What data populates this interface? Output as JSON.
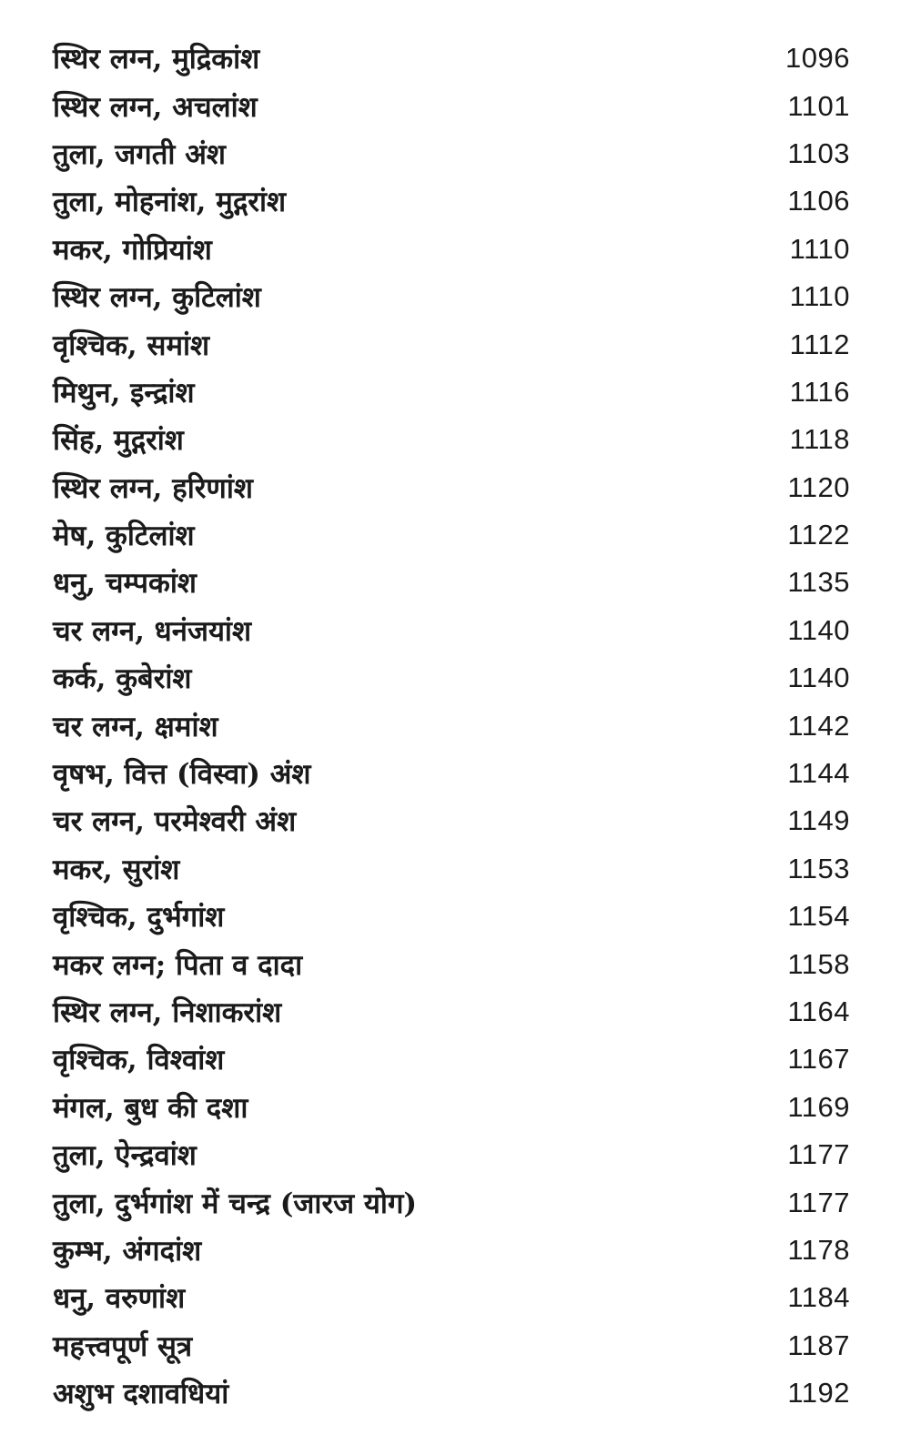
{
  "toc": {
    "entries": [
      {
        "title": "स्थिर लग्न, मुद्रिकांश",
        "page": "1096"
      },
      {
        "title": "स्थिर लग्न, अचलांश",
        "page": "1101"
      },
      {
        "title": "तुला, जगती अंश",
        "page": "1103"
      },
      {
        "title": "तुला, मोहनांश, मुद्गरांश",
        "page": "1106"
      },
      {
        "title": "मकर, गोप्रियांश",
        "page": "1110"
      },
      {
        "title": "स्थिर लग्न, कुटिलांश",
        "page": "1110"
      },
      {
        "title": "वृश्चिक, समांश",
        "page": "1112"
      },
      {
        "title": "मिथुन, इन्द्रांश",
        "page": "1116"
      },
      {
        "title": "सिंह, मुद्गरांश",
        "page": "1118"
      },
      {
        "title": "स्थिर लग्न, हरिणांश",
        "page": "1120"
      },
      {
        "title": "मेष, कुटिलांश",
        "page": "1122"
      },
      {
        "title": "धनु, चम्पकांश",
        "page": "1135"
      },
      {
        "title": "चर लग्न, धनंजयांश",
        "page": "1140"
      },
      {
        "title": "कर्क, कुबेरांश",
        "page": "1140"
      },
      {
        "title": "चर लग्न, क्षमांश",
        "page": "1142"
      },
      {
        "title": "वृषभ, वित्त (विस्वा) अंश",
        "page": "1144"
      },
      {
        "title": "चर लग्न, परमेश्वरी अंश",
        "page": "1149"
      },
      {
        "title": "मकर, सुरांश",
        "page": "1153"
      },
      {
        "title": "वृश्चिक, दुर्भगांश",
        "page": "1154"
      },
      {
        "title": "मकर लग्न; पिता व दादा",
        "page": "1158"
      },
      {
        "title": "स्थिर लग्न, निशाकरांश",
        "page": "1164"
      },
      {
        "title": "वृश्चिक, विश्वांश",
        "page": "1167"
      },
      {
        "title": "मंगल, बुध की दशा",
        "page": "1169"
      },
      {
        "title": "तुला, ऐन्द्रवांश",
        "page": "1177"
      },
      {
        "title": "तुला, दुर्भगांश में चन्द्र (जारज योग)",
        "page": "1177"
      },
      {
        "title": "कुम्भ, अंगदांश",
        "page": "1178"
      },
      {
        "title": "धनु, वरुणांश",
        "page": "1184"
      },
      {
        "title": "महत्त्वपूर्ण सूत्र",
        "page": "1187"
      },
      {
        "title": "अशुभ दशावधियां",
        "page": "1192"
      }
    ]
  }
}
